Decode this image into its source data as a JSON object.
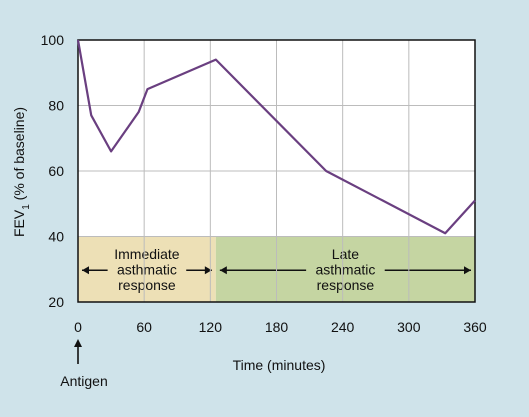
{
  "chart_data": {
    "type": "line",
    "ylabel": {
      "main": "FEV",
      "sub": "1",
      "rest": " (% of baseline)"
    },
    "xlabel": "Time (minutes)",
    "x_ticks": [
      0,
      60,
      120,
      180,
      240,
      300,
      360
    ],
    "y_ticks": [
      20,
      40,
      60,
      80,
      100
    ],
    "xlim": [
      0,
      360
    ],
    "ylim": [
      20,
      100
    ],
    "grid": true,
    "series": [
      {
        "x": [
          0,
          12,
          30,
          55,
          63,
          125,
          225,
          333,
          360
        ],
        "y": [
          100,
          77,
          66,
          78,
          85,
          94,
          60,
          41,
          51
        ]
      }
    ],
    "regions": [
      {
        "x_start": 0,
        "x_end": 125,
        "y_start": 20,
        "y_end": 40,
        "label_lines": [
          "Immediate",
          "asthmatic",
          "response"
        ],
        "color": "#ede0b6"
      },
      {
        "x_start": 125,
        "x_end": 360,
        "y_start": 20,
        "y_end": 40,
        "label_lines": [
          "Late",
          "asthmatic",
          "response"
        ],
        "color": "#c5d5a2"
      }
    ],
    "annotation": {
      "label": "Antigen",
      "x": 0
    }
  },
  "colors": {
    "background": "#cfe3ea",
    "plot_background": "#ffffff",
    "line": "#6a3f80",
    "grid": "#bcbcbc"
  }
}
